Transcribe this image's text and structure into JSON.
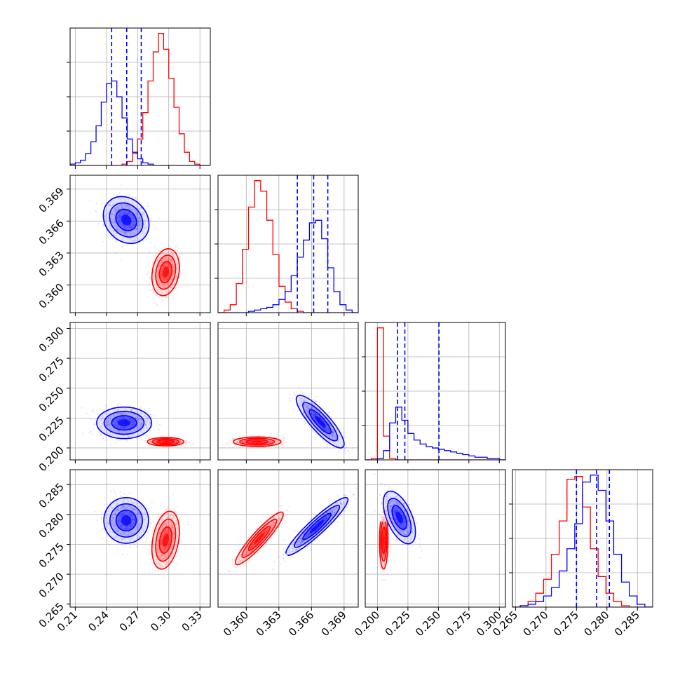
{
  "chart_data": {
    "type": "corner",
    "title": "",
    "grid": true,
    "series": [
      {
        "color": "#0000ff"
      },
      {
        "color": "#ff0000"
      }
    ],
    "parameters": [
      {
        "range": [
          0.205,
          0.34
        ],
        "ticks": [
          0.21,
          0.24,
          0.27,
          0.3,
          0.33
        ],
        "tick_labels": [
          "0.21",
          "0.24",
          "0.27",
          "0.30",
          "0.33"
        ],
        "quantiles_blue": [
          0.245,
          0.2595,
          0.2735
        ],
        "hist_blue": [
          1,
          2,
          4,
          9,
          18,
          30,
          48,
          62,
          64,
          52,
          36,
          20,
          10,
          5,
          2,
          1,
          0,
          0,
          0,
          0,
          0,
          0,
          0,
          0,
          0,
          0,
          0
        ],
        "hist_red": [
          0,
          0,
          0,
          0,
          0,
          0,
          0,
          0,
          0,
          0,
          1,
          3,
          9,
          20,
          40,
          64,
          86,
          100,
          88,
          66,
          44,
          24,
          10,
          3,
          1,
          0,
          0
        ]
      },
      {
        "range": [
          0.3574,
          0.3703
        ],
        "ticks": [
          0.36,
          0.363,
          0.366,
          0.369
        ],
        "tick_labels": [
          "0.360",
          "0.363",
          "0.366",
          "0.369"
        ],
        "quantiles_blue": [
          0.3647,
          0.3662,
          0.3675
        ],
        "hist_blue": [
          0,
          0,
          0,
          0,
          0,
          1,
          2,
          3,
          4,
          6,
          10,
          16,
          28,
          42,
          55,
          68,
          70,
          56,
          34,
          16,
          6,
          2,
          0
        ],
        "hist_red": [
          0,
          2,
          6,
          22,
          48,
          80,
          100,
          92,
          70,
          44,
          20,
          8,
          3,
          1,
          0,
          0,
          0,
          0,
          0,
          0,
          0,
          0,
          0
        ]
      },
      {
        "range": [
          0.19,
          0.305
        ],
        "ticks": [
          0.2,
          0.225,
          0.25,
          0.275,
          0.3
        ],
        "tick_labels": [
          "0.200",
          "0.225",
          "0.250",
          "0.275",
          "0.300"
        ],
        "quantiles_blue": [
          0.2165,
          0.2225,
          0.2505
        ],
        "hist_blue": [
          0,
          0,
          1,
          7,
          28,
          40,
          30,
          20,
          15,
          12,
          10,
          9,
          8,
          7,
          6,
          5,
          4,
          3,
          2,
          2,
          1,
          1,
          0
        ],
        "hist_red": [
          0,
          1,
          100,
          18,
          1,
          0,
          0,
          0,
          0,
          0,
          0,
          0,
          0,
          0,
          0,
          0,
          0,
          0,
          0,
          0,
          0,
          0,
          0
        ]
      },
      {
        "range": [
          0.2645,
          0.2875
        ],
        "ticks": [
          0.265,
          0.27,
          0.275,
          0.28,
          0.285
        ],
        "tick_labels": [
          "0.265",
          "0.270",
          "0.275",
          "0.280",
          "0.285"
        ],
        "quantiles_blue": [
          0.275,
          0.2783,
          0.2804
        ],
        "hist_blue": [
          0,
          1,
          2,
          4,
          8,
          14,
          26,
          42,
          60,
          90,
          95,
          84,
          62,
          38,
          18,
          8,
          2,
          0
        ],
        "hist_red": [
          0,
          1,
          4,
          10,
          20,
          38,
          62,
          92,
          94,
          72,
          42,
          22,
          10,
          4,
          1,
          0,
          0,
          0
        ]
      }
    ],
    "clusters": {
      "blue": {
        "0-1": {
          "mean": [
            0.259,
            0.3661
          ],
          "sd": [
            0.01,
            0.001
          ],
          "rho": -0.2
        },
        "0-2": {
          "mean": [
            0.257,
            0.221
          ],
          "sd": [
            0.012,
            0.006
          ],
          "rho": 0.0
        },
        "0-3": {
          "mean": [
            0.259,
            0.279
          ],
          "sd": [
            0.01,
            0.0017
          ],
          "rho": 0.0
        },
        "1-2": {
          "mean": [
            0.3668,
            0.222
          ],
          "sd": [
            0.001,
            0.01
          ],
          "rho": -0.85
        },
        "1-3": {
          "mean": [
            0.3665,
            0.278
          ],
          "sd": [
            0.0013,
            0.0022
          ],
          "rho": 0.93
        },
        "2-3": {
          "mean": [
            0.218,
            0.2795
          ],
          "sd": [
            0.006,
            0.002
          ],
          "rho": -0.55
        }
      },
      "red": {
        "0-1": {
          "mean": [
            0.297,
            0.3612
          ],
          "sd": [
            0.006,
            0.001
          ],
          "rho": 0.2
        },
        "0-2": {
          "mean": [
            0.297,
            0.2052
          ],
          "sd": [
            0.008,
            0.0016
          ],
          "rho": 0.0
        },
        "0-3": {
          "mean": [
            0.297,
            0.2757
          ],
          "sd": [
            0.006,
            0.0022
          ],
          "rho": 0.3
        },
        "1-2": {
          "mean": [
            0.361,
            0.2052
          ],
          "sd": [
            0.001,
            0.0018
          ],
          "rho": 0.0
        },
        "1-3": {
          "mean": [
            0.3612,
            0.276
          ],
          "sd": [
            0.001,
            0.002
          ],
          "rho": 0.92
        },
        "2-3": {
          "mean": [
            0.2052,
            0.2757
          ],
          "sd": [
            0.0016,
            0.0022
          ],
          "rho": 0.05
        }
      }
    },
    "diag_y_ticks": 4
  }
}
